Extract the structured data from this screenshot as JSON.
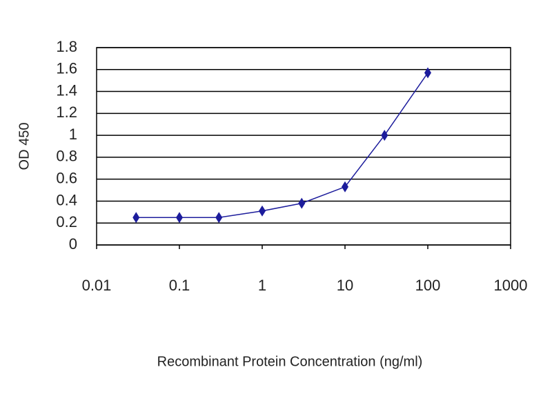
{
  "chart_data": {
    "type": "line",
    "xlabel": "Recombinant Protein Concentration (ng/ml)",
    "ylabel": "OD 450",
    "x": [
      0.03,
      0.1,
      0.3,
      1,
      3,
      10,
      30,
      100
    ],
    "series": [
      {
        "color": "#1c1c9c",
        "values": [
          0.25,
          0.25,
          0.25,
          0.31,
          0.38,
          0.53,
          1.0,
          1.57
        ]
      }
    ],
    "xscale": "log",
    "xlim": [
      0.01,
      1000
    ],
    "xticks": [
      0.01,
      0.1,
      1,
      10,
      100,
      1000
    ],
    "ylim": [
      0,
      1.8
    ],
    "yticks": [
      0,
      0.2,
      0.4,
      0.6,
      0.8,
      1,
      1.2,
      1.4,
      1.6,
      1.8
    ],
    "grid": true
  }
}
